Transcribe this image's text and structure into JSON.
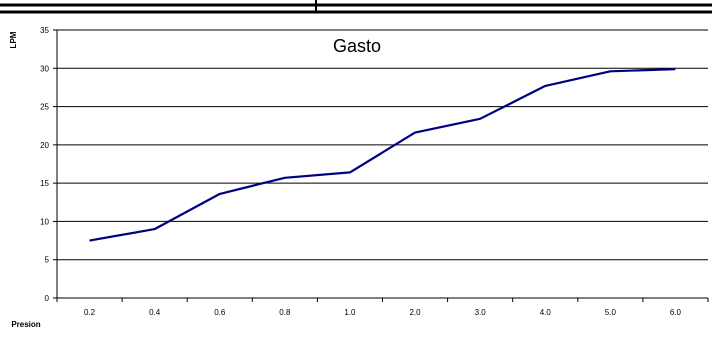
{
  "chart_data": {
    "type": "line",
    "title": "Gasto",
    "xlabel": "Presion",
    "ylabel": "LPM",
    "categories": [
      "0.2",
      "0.4",
      "0.6",
      "0.8",
      "1.0",
      "2.0",
      "3.0",
      "4.0",
      "5.0",
      "6.0"
    ],
    "series": [
      {
        "values": [
          7.5,
          9.0,
          13.6,
          15.7,
          16.4,
          21.6,
          23.4,
          27.7,
          29.6,
          29.9
        ],
        "color": "#000080"
      }
    ],
    "ylim": [
      0,
      35
    ],
    "yticks": [
      "0",
      "5",
      "10",
      "15",
      "20",
      "25",
      "30",
      "35"
    ],
    "grid": true
  }
}
